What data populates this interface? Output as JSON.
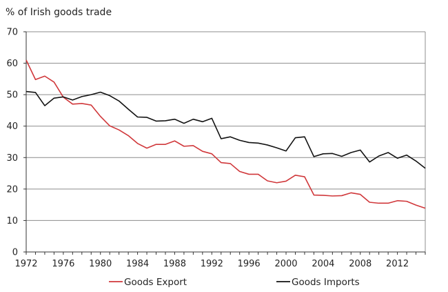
{
  "chart_data": {
    "type": "line",
    "title": "",
    "ylabel": "% of Irish goods trade",
    "xlabel": "",
    "ylim": [
      0,
      70
    ],
    "xlim": [
      1972,
      2015
    ],
    "y_ticks": [
      "0",
      "10",
      "20",
      "30",
      "40",
      "50",
      "60",
      "70"
    ],
    "x_ticks": [
      "1972",
      "1976",
      "1980",
      "1984",
      "1988",
      "1992",
      "1996",
      "2000",
      "2004",
      "2008",
      "2012"
    ],
    "grid": "horizontal",
    "legend_position": "bottom",
    "x": [
      1972,
      1973,
      1974,
      1975,
      1976,
      1977,
      1978,
      1979,
      1980,
      1981,
      1982,
      1983,
      1984,
      1985,
      1986,
      1987,
      1988,
      1989,
      1990,
      1991,
      1992,
      1993,
      1994,
      1995,
      1996,
      1997,
      1998,
      1999,
      2000,
      2001,
      2002,
      2003,
      2004,
      2005,
      2006,
      2007,
      2008,
      2009,
      2010,
      2011,
      2012,
      2013,
      2014,
      2015
    ],
    "series": [
      {
        "name": "Goods Export",
        "color": "#d0373a",
        "values": [
          61.0,
          54.8,
          55.9,
          54.0,
          49.2,
          47.0,
          47.2,
          46.7,
          43.1,
          40.1,
          38.8,
          37.0,
          34.5,
          33.0,
          34.2,
          34.2,
          35.3,
          33.6,
          33.8,
          32.0,
          31.2,
          28.4,
          28.1,
          25.6,
          24.7,
          24.7,
          22.6,
          22.0,
          22.5,
          24.4,
          23.9,
          18.1,
          18.0,
          17.8,
          17.9,
          18.8,
          18.3,
          15.8,
          15.5,
          15.5,
          16.3,
          16.1,
          14.9,
          13.9
        ]
      },
      {
        "name": "Goods Imports",
        "color": "#111111",
        "values": [
          51.0,
          50.7,
          46.5,
          48.9,
          49.3,
          48.3,
          49.4,
          50.0,
          50.8,
          49.7,
          48.0,
          45.4,
          42.9,
          42.8,
          41.6,
          41.7,
          42.2,
          40.9,
          42.2,
          41.4,
          42.5,
          36.0,
          36.6,
          35.5,
          34.8,
          34.6,
          34.0,
          33.1,
          32.1,
          36.3,
          36.6,
          30.3,
          31.2,
          31.3,
          30.4,
          31.6,
          32.4,
          28.6,
          30.5,
          31.6,
          29.8,
          30.8,
          28.9,
          26.6
        ]
      }
    ]
  }
}
